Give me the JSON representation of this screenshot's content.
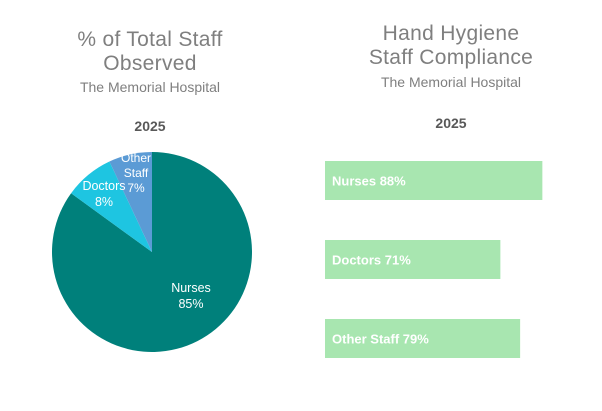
{
  "colors": {
    "nurses": "#00807b",
    "doctors": "#1ec5e1",
    "other_staff": "#5b9bd5",
    "bar": "#a8e6b0",
    "bar_text": "#ffffff",
    "title_text": "#7f7f7f"
  },
  "chart_data": [
    {
      "type": "pie",
      "title": "% of Total Staff Observed",
      "subtitle": "The Memorial Hospital",
      "year": "2025",
      "slices": [
        {
          "name": "Nurses",
          "value": 85,
          "label_line1": "Nurses",
          "label_line2": "85%"
        },
        {
          "name": "Doctors",
          "value": 8,
          "label_line1": "Doctors",
          "label_line2": "8%"
        },
        {
          "name": "Other Staff",
          "value": 7,
          "label_line1": "Other Staff",
          "label_line2": "7%"
        }
      ]
    },
    {
      "type": "bar",
      "orientation": "horizontal",
      "title": "Hand Hygiene Staff Compliance",
      "subtitle": "The Memorial Hospital",
      "year": "2025",
      "categories": [
        "Nurses",
        "Doctors",
        "Other Staff"
      ],
      "values": [
        88,
        71,
        79
      ],
      "data_labels": [
        "Nurses 88%",
        "Doctors 71%",
        "Other Staff 79%"
      ],
      "xlim": [
        0,
        100
      ]
    }
  ]
}
